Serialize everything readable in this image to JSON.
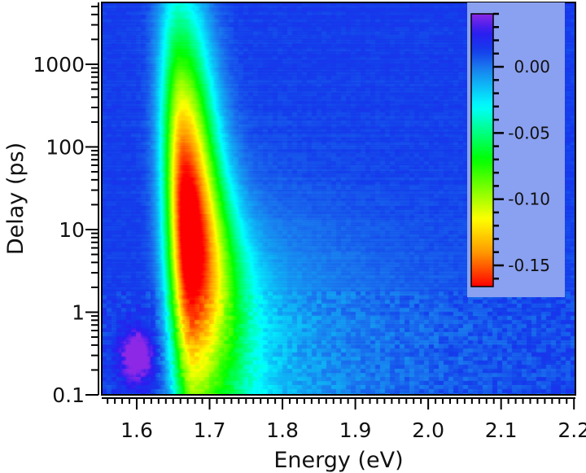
{
  "chart_data": {
    "type": "heatmap",
    "xlabel": "Energy (eV)",
    "ylabel": "Delay (ps)",
    "xlim": [
      1.552,
      2.202
    ],
    "ylim": [
      0.1,
      5600
    ],
    "yscale": "log",
    "xticks": [
      "1.6",
      "1.7",
      "1.8",
      "1.9",
      "2.0",
      "2.1",
      "2.2"
    ],
    "xtick_values": [
      1.6,
      1.7,
      1.8,
      1.9,
      2.0,
      2.1,
      2.2
    ],
    "yticks": [
      "0.1",
      "1",
      "10",
      "100",
      "1000"
    ],
    "ytick_values": [
      0.1,
      1,
      10,
      100,
      1000
    ],
    "grid": false,
    "colorbar": {
      "placement": "top-right",
      "range": [
        -0.166,
        0.04
      ],
      "ticks": [
        "0.00",
        "-0.05",
        "-0.10",
        "-0.15"
      ],
      "tick_values": [
        0.0,
        -0.05,
        -0.1,
        -0.15
      ],
      "colormap": [
        {
          "v": 0.04,
          "color": "#8c28e6"
        },
        {
          "v": 0.026,
          "color": "#2a1cf0"
        },
        {
          "v": 0.012,
          "color": "#143ceb"
        },
        {
          "v": 0.0,
          "color": "#1a78ee"
        },
        {
          "v": -0.03,
          "color": "#00ffff"
        },
        {
          "v": -0.07,
          "color": "#00ff00"
        },
        {
          "v": -0.115,
          "color": "#ffff00"
        },
        {
          "v": -0.14,
          "color": "#ff9900"
        },
        {
          "v": -0.166,
          "color": "#ff0000"
        }
      ],
      "panel_color": "#8aa0f0"
    },
    "features": [
      {
        "name": "bleach",
        "energy_eV": 1.67,
        "peak_delay_ps": 16,
        "value": -0.166
      },
      {
        "name": "induced-absorption",
        "energy_eV": 1.6,
        "delay_ps": 0.3,
        "value": 0.04
      },
      {
        "name": "background",
        "value": 0.012
      }
    ]
  }
}
